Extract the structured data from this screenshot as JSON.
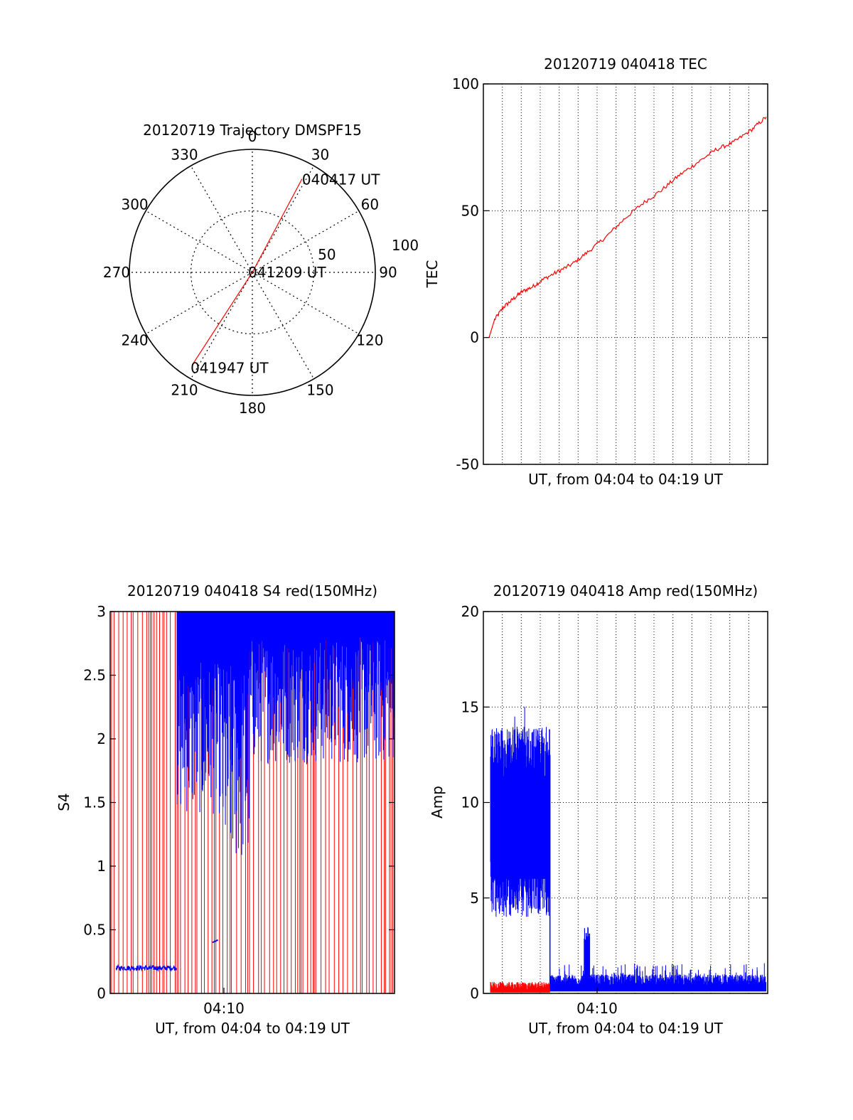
{
  "colors": {
    "red": "#ff0000",
    "blue": "#0000ff",
    "axis": "#000000",
    "grid": "#000000"
  },
  "chart_data": [
    {
      "id": "trajectory",
      "type": "polar",
      "title": "20120719 Trajectory DMSPF15",
      "radial_ticks": [
        "50",
        "100"
      ],
      "radial_range": [
        0,
        100
      ],
      "angle_labels": [
        "0",
        "30",
        "60",
        "90",
        "120",
        "150",
        "180",
        "210",
        "240",
        "270",
        "300",
        "330"
      ],
      "trajectory": [
        {
          "azimuth": 28,
          "elevation_scale": 86,
          "label": "040417 UT"
        },
        {
          "azimuth": 0,
          "elevation_scale": 0,
          "label": "041209 UT"
        },
        {
          "azimuth": 213,
          "elevation_scale": 88,
          "label": "041947 UT"
        }
      ],
      "line_color": "red"
    },
    {
      "id": "tec",
      "type": "line",
      "title": "20120719 040418 TEC",
      "xlabel": "UT, from 04:04 to 04:19 UT",
      "ylabel": "TEC",
      "ylim": [
        -50,
        100
      ],
      "yticks": [
        "-50",
        "0",
        "50",
        "100"
      ],
      "grid": true,
      "series": [
        {
          "color": "red",
          "x": [
            0,
            0.3,
            0.8,
            1.3,
            1.8,
            2.4,
            3.0,
            3.8,
            4.6,
            5.5,
            6.5,
            7.5,
            8.5,
            9.5,
            10.5,
            11.5,
            12.5,
            13.5,
            14.5,
            15.3
          ],
          "y": [
            0,
            7,
            12,
            15,
            18,
            20,
            23,
            26,
            29,
            34,
            40,
            47,
            53,
            58,
            64,
            69,
            74,
            77,
            82,
            87
          ]
        }
      ]
    },
    {
      "id": "s4",
      "type": "line",
      "title": "20120719 040418 S4 red(150MHz)",
      "xlabel": "UT, from 04:04 to 04:19 UT",
      "ylabel": "S4",
      "ylim": [
        0,
        3
      ],
      "yticks": [
        "0",
        "0.5",
        "1",
        "1.5",
        "2",
        "2.5",
        "3"
      ],
      "xticks": [
        "04:10"
      ],
      "series": [
        {
          "color": "red",
          "note": "dense vertical spikes spanning 0 to 3 across entire span"
        },
        {
          "color": "blue",
          "segments": [
            {
              "x": [
                0.3,
                1.0,
                2.0,
                3.0,
                3.6
              ],
              "y": [
                0.2,
                0.19,
                0.21,
                0.19,
                0.22
              ]
            },
            {
              "x": [
                5.5,
                5.8
              ],
              "y": [
                0.4,
                0.42
              ]
            }
          ],
          "dense_from": 3.6,
          "dense_to": 15.3
        }
      ]
    },
    {
      "id": "amp",
      "type": "line",
      "title": "20120719 040418 Amp red(150MHz)",
      "xlabel": "UT, from 04:04 to 04:19 UT",
      "ylabel": "Amp",
      "ylim": [
        0,
        20
      ],
      "yticks": [
        "0",
        "5",
        "10",
        "15",
        "20"
      ],
      "xticks": [
        "04:10"
      ],
      "grid": true,
      "series": [
        {
          "color": "blue",
          "bands": [
            {
              "x": [
                0,
                3.3
              ],
              "low": 4,
              "high": 14,
              "peak": 15.3
            },
            {
              "x": [
                3.3,
                15.3
              ],
              "low": 0.2,
              "high": 1.2
            },
            {
              "x": [
                5.2,
                5.5
              ],
              "low": 0.5,
              "high": 3.5
            }
          ]
        },
        {
          "color": "red",
          "bands": [
            {
              "x": [
                0,
                3.3
              ],
              "low": 0.1,
              "high": 0.6
            }
          ]
        }
      ]
    }
  ]
}
